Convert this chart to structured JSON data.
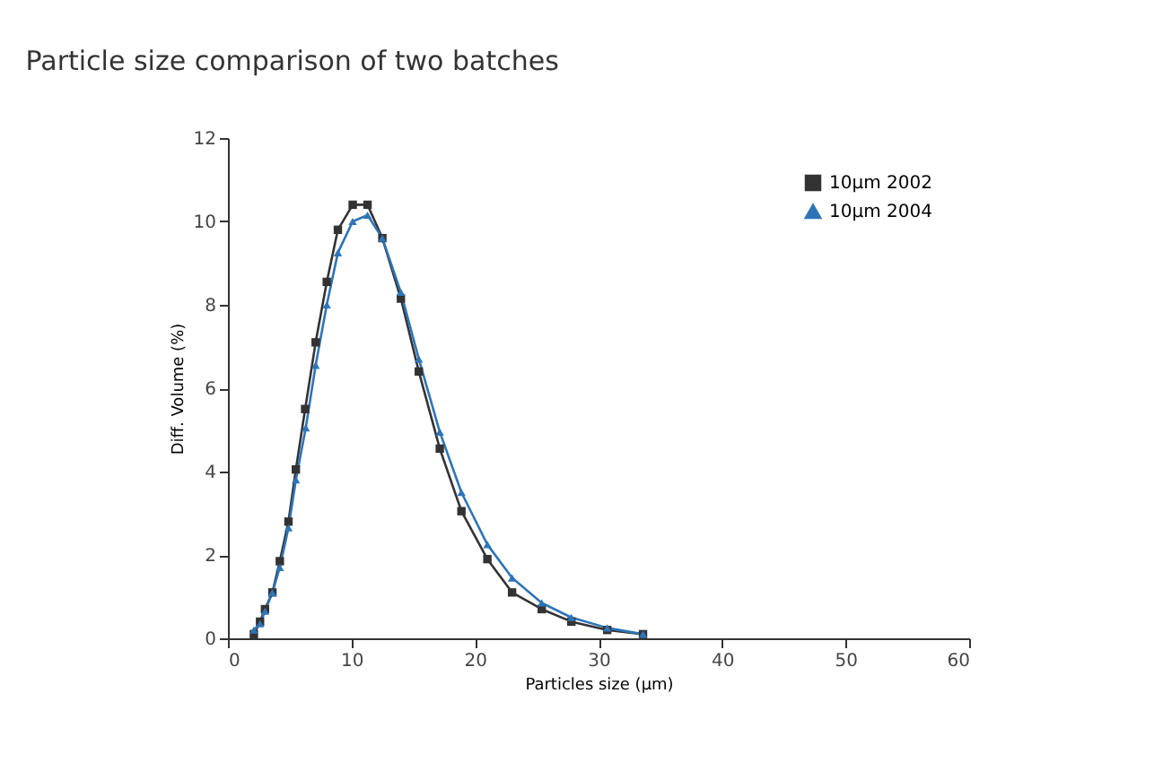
{
  "chart_data": {
    "type": "line",
    "title": "Particle size comparison of two batches",
    "xlabel": "Particles size (µm)",
    "ylabel": "Diff. Volume (%)",
    "xlim": [
      0,
      60
    ],
    "xticks": [
      0,
      10,
      20,
      30,
      40,
      50,
      60
    ],
    "ylim": [
      0,
      12
    ],
    "yticks": [
      0,
      2,
      4,
      6,
      8,
      10,
      12
    ],
    "grid": false,
    "legend": "top right",
    "line_style": "solid",
    "series": [
      {
        "name": "10µm 2002",
        "color": "#333333",
        "marker": "square",
        "x": [
          2.1,
          2.6,
          3.0,
          3.6,
          4.2,
          4.9,
          5.5,
          6.25,
          7.1,
          8.0,
          8.9,
          10.1,
          11.3,
          12.5,
          14.0,
          15.45,
          17.15,
          18.9,
          21.0,
          23.0,
          25.4,
          27.8,
          30.7,
          33.6
        ],
        "values": [
          0.1,
          0.4,
          0.7,
          1.1,
          1.85,
          2.8,
          4.05,
          5.5,
          7.1,
          8.55,
          9.8,
          10.4,
          10.4,
          9.6,
          8.15,
          6.4,
          4.55,
          3.05,
          1.9,
          1.1,
          0.7,
          0.4,
          0.2,
          0.1
        ]
      },
      {
        "name": "10µm 2004",
        "color": "#2e75b6",
        "marker": "triangle",
        "x": [
          2.1,
          2.6,
          3.0,
          3.6,
          4.2,
          4.9,
          5.5,
          6.3,
          7.1,
          8.0,
          8.9,
          10.1,
          11.3,
          12.5,
          14.0,
          15.45,
          17.15,
          18.9,
          21.0,
          23.0,
          25.4,
          27.8,
          30.7,
          33.6
        ],
        "values": [
          0.2,
          0.35,
          0.65,
          1.1,
          1.7,
          2.65,
          3.8,
          5.05,
          6.55,
          8.0,
          9.25,
          10.0,
          10.15,
          9.6,
          8.3,
          6.7,
          4.95,
          3.5,
          2.25,
          1.45,
          0.85,
          0.5,
          0.25,
          0.1
        ]
      }
    ]
  }
}
